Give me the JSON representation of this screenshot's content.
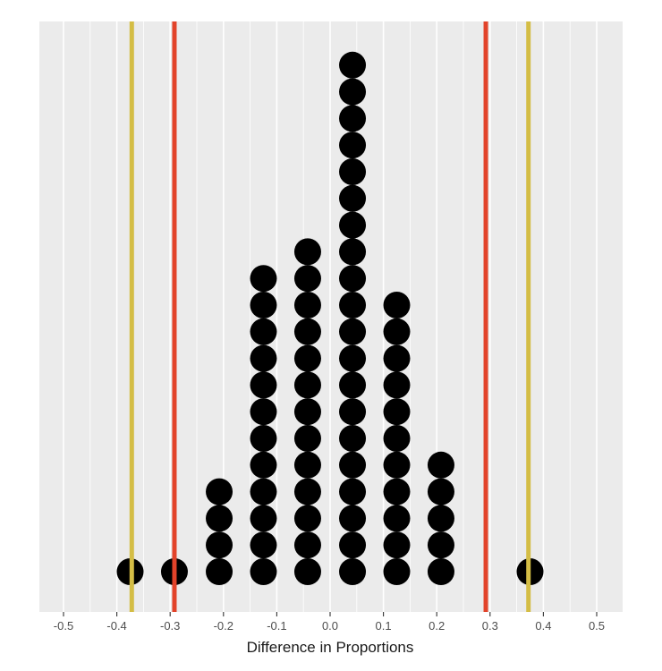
{
  "chart_data": {
    "type": "scatter",
    "subtype": "dotplot",
    "title": "",
    "xlabel": "Difference in Proportions",
    "ylabel": "",
    "xlim": [
      -0.55,
      0.55
    ],
    "x_ticks": [
      "-0.5",
      "-0.4",
      "-0.3",
      "-0.2",
      "-0.1",
      "0.0",
      "0.1",
      "0.2",
      "0.3",
      "0.4",
      "0.5"
    ],
    "x_tick_values": [
      -0.5,
      -0.4,
      -0.3,
      -0.2,
      -0.1,
      0.0,
      0.1,
      0.2,
      0.3,
      0.4,
      0.5
    ],
    "grid": true,
    "background_color": "#ebebeb",
    "grid_color": "#ffffff",
    "dot_color": "#000000",
    "stacks": [
      {
        "x": -0.375,
        "count": 1
      },
      {
        "x": -0.292,
        "count": 1
      },
      {
        "x": -0.208,
        "count": 4
      },
      {
        "x": -0.125,
        "count": 12
      },
      {
        "x": -0.042,
        "count": 13
      },
      {
        "x": 0.042,
        "count": 20
      },
      {
        "x": 0.125,
        "count": 11
      },
      {
        "x": 0.208,
        "count": 5
      },
      {
        "x": 0.375,
        "count": 1
      }
    ],
    "reference_lines": [
      {
        "x": -0.372,
        "color": "#d4bd45"
      },
      {
        "x": -0.292,
        "color": "#e2432a"
      },
      {
        "x": 0.292,
        "color": "#e2432a"
      },
      {
        "x": 0.372,
        "color": "#d4bd45"
      }
    ]
  }
}
